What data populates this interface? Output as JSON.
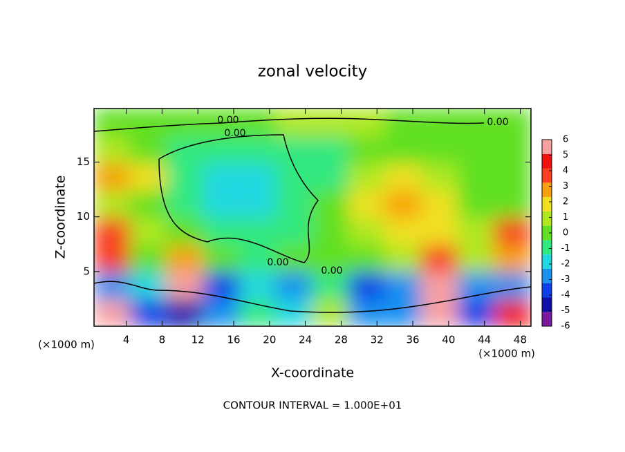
{
  "chart_data": {
    "type": "heatmap",
    "title": "zonal velocity",
    "x_label": "X-coordinate",
    "y_label": "Z-coordinate",
    "x_unit": "(×1000 m)",
    "x_unit_right": "(×1000 m)",
    "footer": "CONTOUR INTERVAL = 1.000E+01",
    "contour_labels": [
      "0.00",
      "0.00",
      "0.00",
      "0.00",
      "0.00"
    ],
    "xlim": [
      0.4,
      49.2
    ],
    "ylim": [
      0,
      19.9
    ],
    "xticks": [
      4,
      8,
      12,
      16,
      20,
      24,
      28,
      32,
      36,
      40,
      44,
      48
    ],
    "yticks": [
      5,
      10,
      15
    ],
    "z": [
      [
        6,
        -4,
        -5,
        -3,
        -1,
        -2,
        1,
        -3,
        -3,
        6,
        -4,
        5
      ],
      [
        -3,
        -2,
        6,
        -4,
        -2,
        -3,
        -1,
        -4,
        -3,
        6,
        -3,
        -3
      ],
      [
        4,
        0,
        3,
        0,
        -0.5,
        0,
        0,
        0.5,
        1,
        4,
        1,
        3
      ],
      [
        4,
        1,
        0,
        -1,
        -1,
        -0.5,
        0,
        1,
        2.5,
        2,
        1,
        4
      ],
      [
        1,
        0,
        -1,
        -1.5,
        -1.5,
        -1,
        0,
        2,
        3,
        2,
        0.5,
        0.5
      ],
      [
        3,
        2,
        -0.5,
        -1.5,
        -1.5,
        -1,
        -0.5,
        1,
        2,
        1,
        0,
        0
      ],
      [
        1,
        0,
        -0.5,
        -1,
        -1,
        -1,
        -0.5,
        0,
        0.5,
        0.5,
        0,
        0.5
      ],
      [
        0,
        0,
        0,
        0.5,
        0.5,
        1,
        1,
        1,
        0.5,
        0.5,
        0,
        0
      ]
    ],
    "clim": [
      -6,
      6
    ],
    "cticks": [
      -6,
      -5,
      -4,
      -3,
      -2,
      -1,
      0,
      1,
      2,
      3,
      4,
      5,
      6
    ],
    "colors": [
      "#7a1aa0",
      "#1010a8",
      "#1040e8",
      "#1890f0",
      "#20d8e0",
      "#30e880",
      "#60e020",
      "#b0e820",
      "#f0e020",
      "#f8a010",
      "#f84020",
      "#f01010",
      "#f8a0a0"
    ]
  }
}
